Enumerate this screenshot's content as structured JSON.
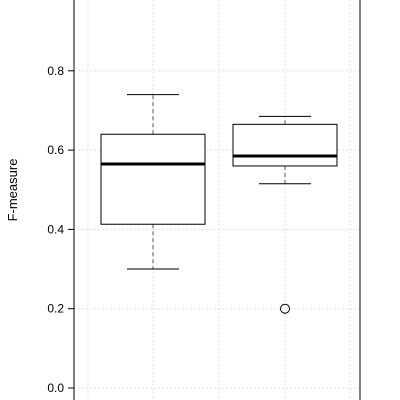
{
  "chart_data": {
    "type": "boxplot",
    "title": "",
    "xlabel": "",
    "ylabel": "F-measure",
    "ylim": [
      0.0,
      0.9
    ],
    "yticks": [
      0.0,
      0.2,
      0.4,
      0.6,
      0.8
    ],
    "ytick_labels": [
      "0.0",
      "0.2",
      "0.4",
      "0.6",
      "0.8"
    ],
    "grid": true,
    "series": [
      {
        "whisker_low": 0.3,
        "q1": 0.413,
        "median": 0.565,
        "q3": 0.64,
        "whisker_high": 0.74,
        "outliers": []
      },
      {
        "whisker_low": 0.515,
        "q1": 0.56,
        "median": 0.585,
        "q3": 0.665,
        "whisker_high": 0.685,
        "outliers": [
          0.2
        ]
      }
    ]
  }
}
